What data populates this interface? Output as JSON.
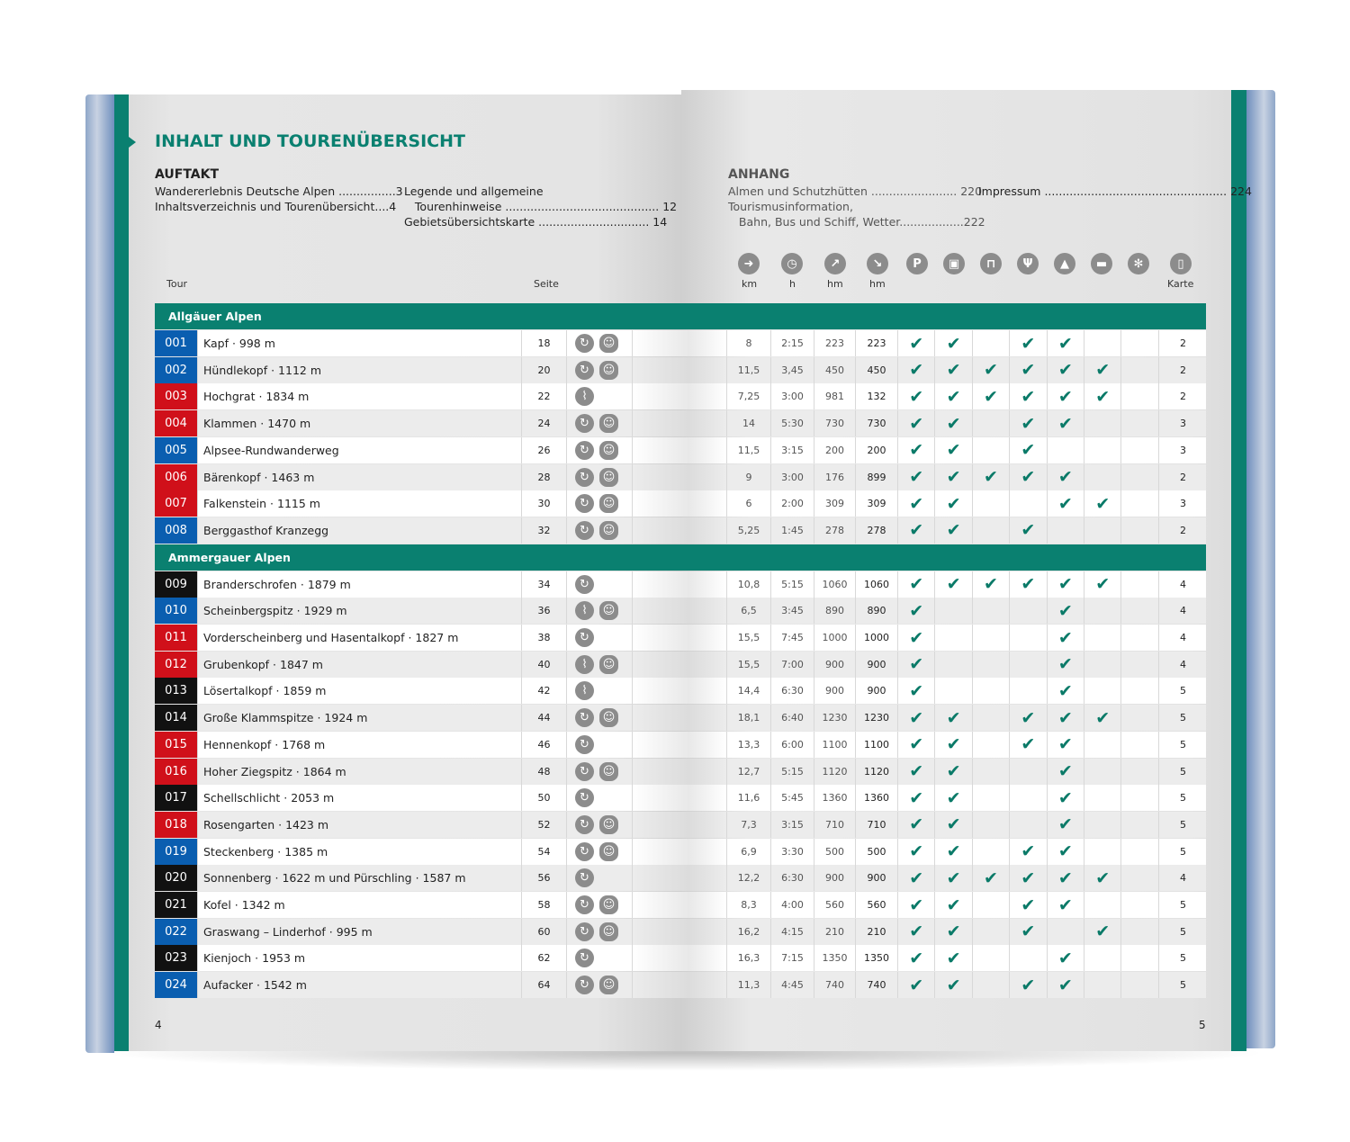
{
  "colors": {
    "accent": "#0a8070",
    "badge_blue": "#0a5eb0",
    "badge_red": "#d0101a",
    "badge_black": "#111111",
    "check": "#0a7a68"
  },
  "title": "INHALT UND TOURENÜBERSICHT",
  "auftakt": {
    "heading": "AUFTAKT",
    "items": [
      {
        "label": "Wandererlebnis Deutsche Alpen ................3"
      },
      {
        "label": "Inhaltsverzeichnis und Tourenübersicht....4"
      }
    ],
    "items2": [
      {
        "label": "Legende und allgemeine"
      },
      {
        "label": "   Tourenhinweise ........................................... 12"
      },
      {
        "label": "Gebietsübersichtskarte ............................... 14"
      }
    ]
  },
  "anhang": {
    "heading": "ANHANG",
    "items": [
      {
        "label": "Almen und Schutzhütten ........................ 220"
      },
      {
        "label": "Tourismusinformation,"
      },
      {
        "label": "   Bahn, Bus und Schiff, Wetter..................222"
      }
    ],
    "impressum": "Impressum ................................................... 224"
  },
  "columns": {
    "tour": "Tour",
    "seite": "Seite",
    "km": "km",
    "h": "h",
    "hm_up": "hm",
    "hm_down": "hm",
    "karte": "Karte",
    "icons": [
      "signpost-icon",
      "clock-icon",
      "ascent-arrow-icon",
      "descent-arrow-icon",
      "parking-icon",
      "bus-icon",
      "cable-car-icon",
      "restaurant-icon",
      "hut-icon",
      "bed-icon",
      "snowflake-icon",
      "map-icon"
    ]
  },
  "groups": [
    {
      "name": "Allgäuer Alpen",
      "tours": [
        {
          "nr": "001",
          "color": "blue",
          "name": "Kapf · 998 m",
          "seite": "18",
          "type": "loop",
          "kids": true,
          "km": "8",
          "h": "2:15",
          "up": "223",
          "down": "223",
          "checks": [
            1,
            1,
            0,
            1,
            1,
            0,
            0
          ],
          "karte": "2"
        },
        {
          "nr": "002",
          "color": "blue",
          "name": "Hündlekopf · 1112 m",
          "seite": "20",
          "type": "loop",
          "kids": true,
          "km": "11,5",
          "h": "3,45",
          "up": "450",
          "down": "450",
          "checks": [
            1,
            1,
            1,
            1,
            1,
            1,
            0
          ],
          "karte": "2"
        },
        {
          "nr": "003",
          "color": "red",
          "name": "Hochgrat · 1834 m",
          "seite": "22",
          "type": "path",
          "kids": false,
          "km": "7,25",
          "h": "3:00",
          "up": "981",
          "down": "132",
          "checks": [
            1,
            1,
            1,
            1,
            1,
            1,
            0
          ],
          "karte": "2"
        },
        {
          "nr": "004",
          "color": "red",
          "name": "Klammen · 1470 m",
          "seite": "24",
          "type": "loop",
          "kids": true,
          "km": "14",
          "h": "5:30",
          "up": "730",
          "down": "730",
          "checks": [
            1,
            1,
            0,
            1,
            1,
            0,
            0
          ],
          "karte": "3"
        },
        {
          "nr": "005",
          "color": "blue",
          "name": "Alpsee-Rundwanderweg",
          "seite": "26",
          "type": "loop",
          "kids": true,
          "km": "11,5",
          "h": "3:15",
          "up": "200",
          "down": "200",
          "checks": [
            1,
            1,
            0,
            1,
            0,
            0,
            0
          ],
          "karte": "3"
        },
        {
          "nr": "006",
          "color": "red",
          "name": "Bärenkopf · 1463 m",
          "seite": "28",
          "type": "loop",
          "kids": true,
          "km": "9",
          "h": "3:00",
          "up": "176",
          "down": "899",
          "checks": [
            1,
            1,
            1,
            1,
            1,
            0,
            0
          ],
          "karte": "2"
        },
        {
          "nr": "007",
          "color": "red",
          "name": "Falkenstein · 1115 m",
          "seite": "30",
          "type": "loop",
          "kids": true,
          "km": "6",
          "h": "2:00",
          "up": "309",
          "down": "309",
          "checks": [
            1,
            1,
            0,
            0,
            1,
            1,
            0
          ],
          "karte": "3"
        },
        {
          "nr": "008",
          "color": "blue",
          "name": "Berggasthof Kranzegg",
          "seite": "32",
          "type": "loop",
          "kids": true,
          "km": "5,25",
          "h": "1:45",
          "up": "278",
          "down": "278",
          "checks": [
            1,
            1,
            0,
            1,
            0,
            0,
            0
          ],
          "karte": "2"
        }
      ]
    },
    {
      "name": "Ammergauer Alpen",
      "tours": [
        {
          "nr": "009",
          "color": "black",
          "name": "Branderschrofen · 1879 m",
          "seite": "34",
          "type": "loop",
          "kids": false,
          "km": "10,8",
          "h": "5:15",
          "up": "1060",
          "down": "1060",
          "checks": [
            1,
            1,
            1,
            1,
            1,
            1,
            0
          ],
          "karte": "4"
        },
        {
          "nr": "010",
          "color": "blue",
          "name": "Scheinbergspitz · 1929 m",
          "seite": "36",
          "type": "path",
          "kids": true,
          "km": "6,5",
          "h": "3:45",
          "up": "890",
          "down": "890",
          "checks": [
            1,
            0,
            0,
            0,
            1,
            0,
            0
          ],
          "karte": "4"
        },
        {
          "nr": "011",
          "color": "red",
          "name": "Vorderscheinberg und Hasentalkopf · 1827 m",
          "seite": "38",
          "type": "loop",
          "kids": false,
          "km": "15,5",
          "h": "7:45",
          "up": "1000",
          "down": "1000",
          "checks": [
            1,
            0,
            0,
            0,
            1,
            0,
            0
          ],
          "karte": "4"
        },
        {
          "nr": "012",
          "color": "red",
          "name": "Grubenkopf · 1847 m",
          "seite": "40",
          "type": "path",
          "kids": true,
          "km": "15,5",
          "h": "7:00",
          "up": "900",
          "down": "900",
          "checks": [
            1,
            0,
            0,
            0,
            1,
            0,
            0
          ],
          "karte": "4"
        },
        {
          "nr": "013",
          "color": "black",
          "name": "Lösertalkopf · 1859 m",
          "seite": "42",
          "type": "path",
          "kids": false,
          "km": "14,4",
          "h": "6:30",
          "up": "900",
          "down": "900",
          "checks": [
            1,
            0,
            0,
            0,
            1,
            0,
            0
          ],
          "karte": "5"
        },
        {
          "nr": "014",
          "color": "black",
          "name": "Große Klammspitze · 1924 m",
          "seite": "44",
          "type": "loop",
          "kids": true,
          "km": "18,1",
          "h": "6:40",
          "up": "1230",
          "down": "1230",
          "checks": [
            1,
            1,
            0,
            1,
            1,
            1,
            0
          ],
          "karte": "5"
        },
        {
          "nr": "015",
          "color": "red",
          "name": "Hennenkopf · 1768 m",
          "seite": "46",
          "type": "loop",
          "kids": false,
          "km": "13,3",
          "h": "6:00",
          "up": "1100",
          "down": "1100",
          "checks": [
            1,
            1,
            0,
            1,
            1,
            0,
            0
          ],
          "karte": "5"
        },
        {
          "nr": "016",
          "color": "red",
          "name": "Hoher Ziegspitz · 1864 m",
          "seite": "48",
          "type": "loop",
          "kids": true,
          "km": "12,7",
          "h": "5:15",
          "up": "1120",
          "down": "1120",
          "checks": [
            1,
            1,
            0,
            0,
            1,
            0,
            0
          ],
          "karte": "5"
        },
        {
          "nr": "017",
          "color": "black",
          "name": "Schellschlicht · 2053 m",
          "seite": "50",
          "type": "loop",
          "kids": false,
          "km": "11,6",
          "h": "5:45",
          "up": "1360",
          "down": "1360",
          "checks": [
            1,
            1,
            0,
            0,
            1,
            0,
            0
          ],
          "karte": "5"
        },
        {
          "nr": "018",
          "color": "red",
          "name": "Rosengarten · 1423 m",
          "seite": "52",
          "type": "loop",
          "kids": true,
          "km": "7,3",
          "h": "3:15",
          "up": "710",
          "down": "710",
          "checks": [
            1,
            1,
            0,
            0,
            1,
            0,
            0
          ],
          "karte": "5"
        },
        {
          "nr": "019",
          "color": "blue",
          "name": "Steckenberg · 1385 m",
          "seite": "54",
          "type": "loop",
          "kids": true,
          "km": "6,9",
          "h": "3:30",
          "up": "500",
          "down": "500",
          "checks": [
            1,
            1,
            0,
            1,
            1,
            0,
            0
          ],
          "karte": "5"
        },
        {
          "nr": "020",
          "color": "black",
          "name": "Sonnenberg · 1622 m und Pürschling · 1587 m",
          "seite": "56",
          "type": "loop",
          "kids": false,
          "km": "12,2",
          "h": "6:30",
          "up": "900",
          "down": "900",
          "checks": [
            1,
            1,
            1,
            1,
            1,
            1,
            0
          ],
          "karte": "4"
        },
        {
          "nr": "021",
          "color": "black",
          "name": "Kofel · 1342 m",
          "seite": "58",
          "type": "loop",
          "kids": true,
          "km": "8,3",
          "h": "4:00",
          "up": "560",
          "down": "560",
          "checks": [
            1,
            1,
            0,
            1,
            1,
            0,
            0
          ],
          "karte": "5"
        },
        {
          "nr": "022",
          "color": "blue",
          "name": "Graswang – Linderhof · 995 m",
          "seite": "60",
          "type": "loop",
          "kids": true,
          "km": "16,2",
          "h": "4:15",
          "up": "210",
          "down": "210",
          "checks": [
            1,
            1,
            0,
            1,
            0,
            1,
            0
          ],
          "karte": "5"
        },
        {
          "nr": "023",
          "color": "black",
          "name": "Kienjoch · 1953 m",
          "seite": "62",
          "type": "loop",
          "kids": false,
          "km": "16,3",
          "h": "7:15",
          "up": "1350",
          "down": "1350",
          "checks": [
            1,
            1,
            0,
            0,
            1,
            0,
            0
          ],
          "karte": "5"
        },
        {
          "nr": "024",
          "color": "blue",
          "name": "Aufacker · 1542 m",
          "seite": "64",
          "type": "loop",
          "kids": true,
          "km": "11,3",
          "h": "4:45",
          "up": "740",
          "down": "740",
          "checks": [
            1,
            1,
            0,
            1,
            1,
            0,
            0
          ],
          "karte": "5"
        }
      ]
    }
  ],
  "page_numbers": {
    "left": "4",
    "right": "5"
  }
}
